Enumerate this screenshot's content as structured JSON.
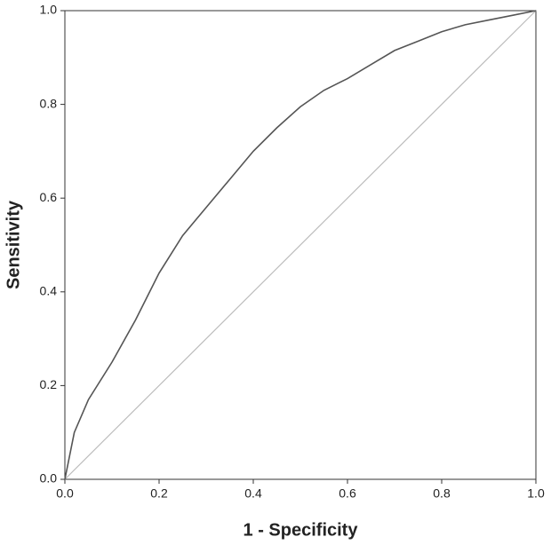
{
  "chart_data": {
    "type": "line",
    "x_label": "1 - Specificity",
    "y_label": "Sensitivity",
    "series": [
      {
        "color": "#555555",
        "x": [
          0,
          0.02,
          0.05,
          0.1,
          0.15,
          0.2,
          0.25,
          0.3,
          0.35,
          0.4,
          0.45,
          0.5,
          0.55,
          0.6,
          0.65,
          0.7,
          0.75,
          0.8,
          0.85,
          0.9,
          0.95,
          1.0
        ],
        "values": [
          0,
          0.1,
          0.17,
          0.25,
          0.34,
          0.44,
          0.52,
          0.58,
          0.64,
          0.7,
          0.75,
          0.795,
          0.83,
          0.855,
          0.885,
          0.915,
          0.935,
          0.955,
          0.97,
          0.98,
          0.99,
          1.0
        ]
      },
      {
        "color": "#bbbbbb",
        "x": [
          0,
          1
        ],
        "values": [
          0,
          1
        ]
      }
    ],
    "xlim": [
      0,
      1
    ],
    "ylim": [
      0,
      1
    ],
    "xticks": [
      {
        "value": 0,
        "label": "0.0"
      },
      {
        "value": 0.2,
        "label": "0.2"
      },
      {
        "value": 0.4,
        "label": "0.4"
      },
      {
        "value": 0.6,
        "label": "0.6"
      },
      {
        "value": 0.8,
        "label": "0.8"
      },
      {
        "value": 1,
        "label": "1.0"
      }
    ],
    "yticks": [
      {
        "value": 0,
        "label": "0.0"
      },
      {
        "value": 0.2,
        "label": "0.2"
      },
      {
        "value": 0.4,
        "label": "0.4"
      },
      {
        "value": 0.6,
        "label": "0.6"
      },
      {
        "value": 0.8,
        "label": "0.8"
      },
      {
        "value": 1,
        "label": "1.0"
      }
    ]
  }
}
